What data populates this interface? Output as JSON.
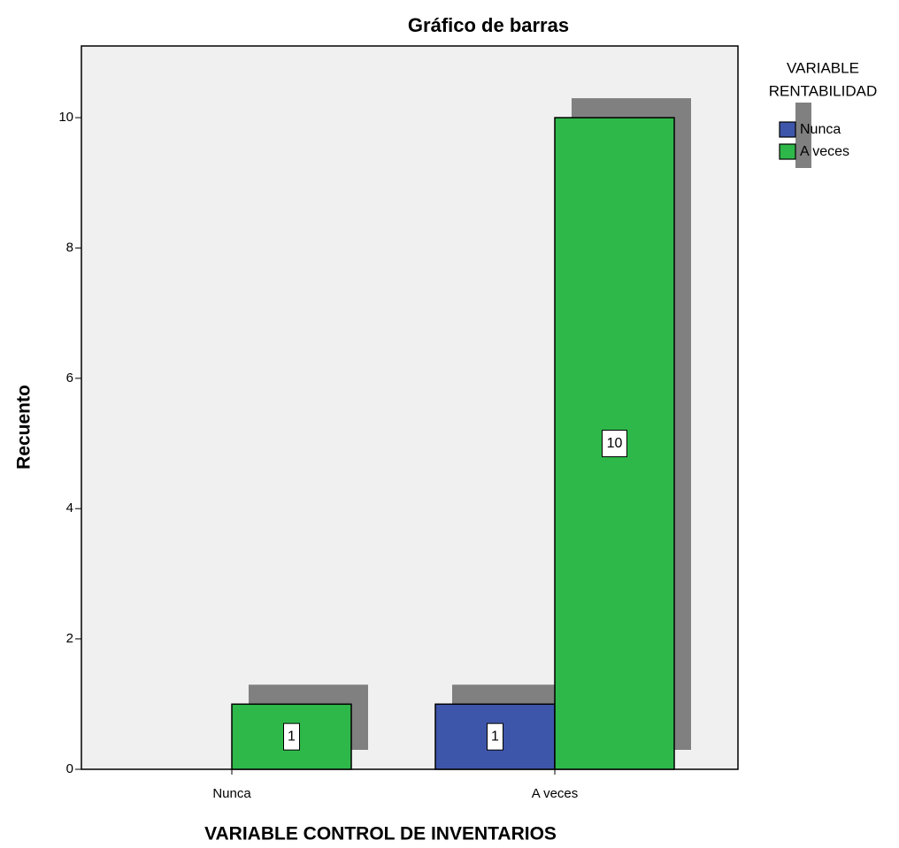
{
  "chart_data": {
    "type": "bar",
    "title": "Gráfico de barras",
    "x_label": "VARIABLE CONTROL DE INVENTARIOS",
    "y_label": "Recuento",
    "legend_title": [
      "VARIABLE",
      "RENTABILIDAD"
    ],
    "categories": [
      "Nunca",
      "A veces"
    ],
    "series": [
      {
        "name": "Nunca",
        "color": "#3e56aa",
        "values": [
          null,
          1
        ]
      },
      {
        "name": "A veces",
        "color": "#2fb84a",
        "values": [
          1,
          10
        ]
      }
    ],
    "ylim": [
      0,
      11.1
    ],
    "yticks": [
      0,
      2,
      4,
      6,
      8,
      10
    ],
    "grid": false,
    "legend": "right"
  }
}
